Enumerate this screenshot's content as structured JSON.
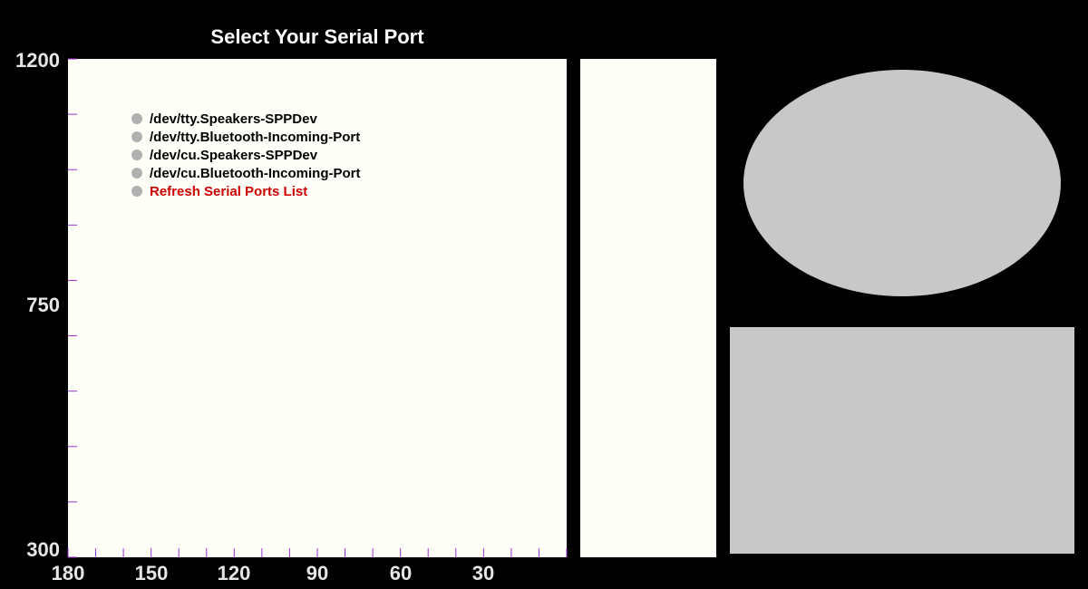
{
  "title": "Select Your Serial Port",
  "ports": [
    {
      "label": "/dev/tty.Speakers-SPPDev"
    },
    {
      "label": "/dev/tty.Bluetooth-Incoming-Port"
    },
    {
      "label": "/dev/cu.Speakers-SPPDev"
    },
    {
      "label": "/dev/cu.Bluetooth-Incoming-Port"
    }
  ],
  "refresh": {
    "label": "Refresh Serial Ports List"
  },
  "axes": {
    "y": {
      "min": 300,
      "max": 1200,
      "labels": [
        "1200",
        "750",
        "300"
      ],
      "minor_step": 100
    },
    "x": {
      "min": 0,
      "max": 180,
      "reversed": true,
      "labels": [
        "180",
        "150",
        "120",
        "90",
        "60",
        "30"
      ],
      "minor_step": 10
    },
    "tick_color": "#9b30d0"
  },
  "colors": {
    "background": "#000000",
    "panel": "#fffff8",
    "shape_fill": "#c8c8c8",
    "refresh_text": "#cc0000",
    "dot": "#b0b0b0"
  }
}
